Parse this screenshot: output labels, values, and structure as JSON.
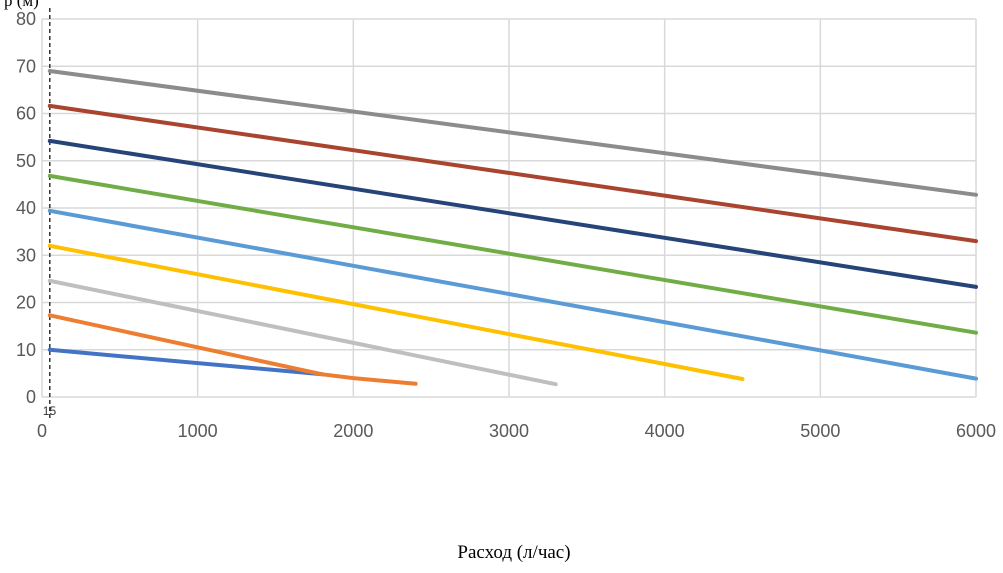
{
  "chart_data": {
    "type": "line",
    "ylabel": "p (м)",
    "xlabel": "Расход (л/час)",
    "xlim": [
      0,
      6000
    ],
    "ylim": [
      0,
      80
    ],
    "x_ticks": [
      "0",
      "1000",
      "2000",
      "3000",
      "4000",
      "5000",
      "6000"
    ],
    "y_ticks": [
      "0",
      "10",
      "20",
      "30",
      "40",
      "50",
      "60",
      "70",
      "80"
    ],
    "grid": true,
    "legend": "none",
    "marker": {
      "x": 50,
      "label": "15"
    },
    "series": [
      {
        "color": "#4472c4",
        "points": [
          [
            50,
            10
          ],
          [
            1800,
            4.8
          ]
        ]
      },
      {
        "color": "#ed7d31",
        "points": [
          [
            50,
            17.3
          ],
          [
            1800,
            4.8
          ],
          [
            2000,
            4
          ],
          [
            2400,
            2.8
          ]
        ]
      },
      {
        "color": "#bfbfbf",
        "points": [
          [
            50,
            24.6
          ],
          [
            3300,
            2.7
          ]
        ]
      },
      {
        "color": "#ffc000",
        "points": [
          [
            50,
            32
          ],
          [
            4500,
            3.8
          ]
        ]
      },
      {
        "color": "#5b9bd5",
        "points": [
          [
            50,
            39.4
          ],
          [
            6000,
            3.9
          ]
        ]
      },
      {
        "color": "#70ad47",
        "points": [
          [
            50,
            46.8
          ],
          [
            6000,
            13.6
          ]
        ]
      },
      {
        "color": "#264478",
        "points": [
          [
            50,
            54.2
          ],
          [
            6000,
            23.3
          ]
        ]
      },
      {
        "color": "#a9442f",
        "points": [
          [
            50,
            61.6
          ],
          [
            6000,
            33
          ]
        ]
      },
      {
        "color": "#8c8c8c",
        "points": [
          [
            50,
            69
          ],
          [
            6000,
            42.8
          ]
        ]
      }
    ]
  }
}
